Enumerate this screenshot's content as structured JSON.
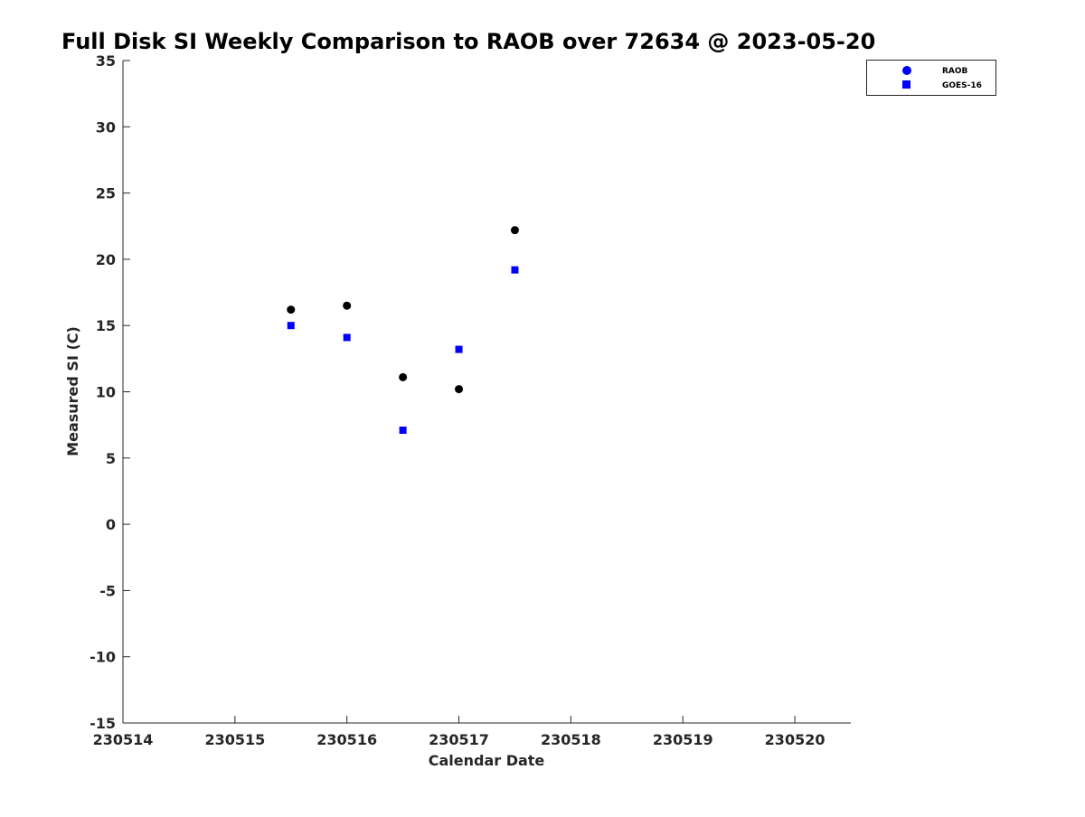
{
  "chart_data": {
    "type": "scatter",
    "title": "Full Disk SI Weekly Comparison to RAOB over 72634 @ 2023-05-20",
    "xlabel": "Calendar Date",
    "ylabel": "Measured SI (C)",
    "xlim": [
      230514,
      230520.5
    ],
    "ylim": [
      -15,
      35
    ],
    "xticks": [
      230514,
      230515,
      230516,
      230517,
      230518,
      230519,
      230520
    ],
    "xtick_labels": [
      "230514",
      "230515",
      "230516",
      "230517",
      "230518",
      "230519",
      "230520"
    ],
    "yticks": [
      -15,
      -10,
      -5,
      0,
      5,
      10,
      15,
      20,
      25,
      30,
      35
    ],
    "ytick_labels": [
      "-15",
      "-10",
      "-5",
      "0",
      "5",
      "10",
      "15",
      "20",
      "25",
      "30",
      "35"
    ],
    "grid": false,
    "legend_position": "top-right",
    "series": [
      {
        "name": "RAOB",
        "marker": "circle",
        "color": "#000000",
        "legend_color": "#0000ff",
        "x": [
          230515.5,
          230516,
          230516.5,
          230517,
          230517.5
        ],
        "y": [
          16.2,
          16.5,
          11.1,
          10.2,
          22.2
        ]
      },
      {
        "name": "GOES-16",
        "marker": "square",
        "color": "#0000ff",
        "legend_color": "#0000ff",
        "x": [
          230515.5,
          230516,
          230516.5,
          230517,
          230517.5
        ],
        "y": [
          15.0,
          14.1,
          7.1,
          13.2,
          19.2
        ]
      }
    ]
  }
}
